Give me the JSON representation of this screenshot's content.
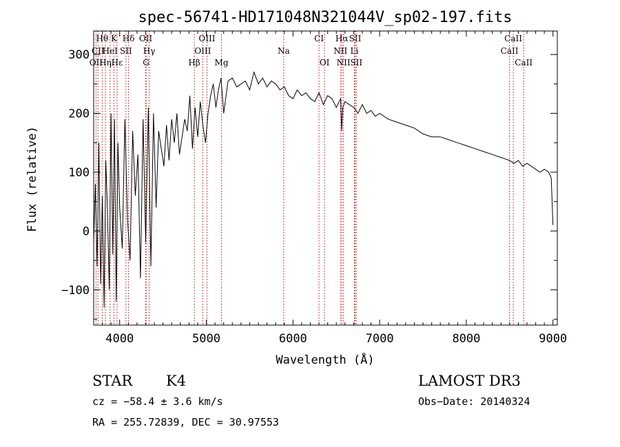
{
  "chart_data": {
    "type": "line",
    "title": "spec-56741-HD171048N321044V_sp02-197.fits",
    "xlabel": "Wavelength (Å)",
    "ylabel": "Flux (relative)",
    "xlim": [
      3700,
      9050
    ],
    "ylim": [
      -160,
      340
    ],
    "xticks": [
      4000,
      5000,
      6000,
      7000,
      8000,
      9000
    ],
    "yticks": [
      -100,
      0,
      100,
      200,
      300
    ],
    "grid": false,
    "series": [
      {
        "name": "flux",
        "x": [
          3700,
          3720,
          3740,
          3760,
          3780,
          3800,
          3820,
          3840,
          3860,
          3880,
          3900,
          3920,
          3940,
          3960,
          3980,
          4000,
          4030,
          4060,
          4090,
          4120,
          4150,
          4180,
          4210,
          4240,
          4270,
          4300,
          4330,
          4360,
          4390,
          4420,
          4450,
          4480,
          4510,
          4540,
          4570,
          4600,
          4630,
          4660,
          4690,
          4720,
          4750,
          4780,
          4810,
          4840,
          4870,
          4900,
          4930,
          4960,
          4990,
          5020,
          5050,
          5080,
          5110,
          5140,
          5170,
          5200,
          5250,
          5300,
          5350,
          5400,
          5450,
          5500,
          5550,
          5600,
          5650,
          5700,
          5750,
          5800,
          5850,
          5900,
          5950,
          6000,
          6050,
          6100,
          6150,
          6200,
          6250,
          6300,
          6350,
          6400,
          6450,
          6500,
          6550,
          6562,
          6575,
          6600,
          6650,
          6700,
          6750,
          6800,
          6850,
          6900,
          6950,
          7000,
          7100,
          7200,
          7300,
          7400,
          7500,
          7600,
          7700,
          7800,
          7900,
          8000,
          8100,
          8200,
          8300,
          8400,
          8500,
          8550,
          8600,
          8650,
          8700,
          8750,
          8800,
          8850,
          8900,
          8950,
          8980,
          9000
        ],
        "values": [
          -20,
          80,
          -60,
          150,
          -90,
          60,
          -130,
          120,
          30,
          -100,
          200,
          -40,
          190,
          -120,
          150,
          40,
          -30,
          190,
          20,
          -50,
          170,
          60,
          130,
          -80,
          190,
          -20,
          210,
          -60,
          200,
          40,
          170,
          140,
          110,
          180,
          120,
          190,
          150,
          200,
          130,
          160,
          190,
          170,
          230,
          140,
          210,
          160,
          220,
          180,
          150,
          200,
          230,
          250,
          210,
          240,
          260,
          200,
          255,
          260,
          245,
          250,
          255,
          240,
          270,
          250,
          260,
          245,
          255,
          250,
          240,
          245,
          230,
          225,
          240,
          230,
          235,
          225,
          220,
          235,
          215,
          230,
          225,
          210,
          225,
          170,
          210,
          220,
          215,
          210,
          200,
          215,
          200,
          205,
          195,
          200,
          190,
          185,
          180,
          175,
          165,
          160,
          160,
          155,
          150,
          145,
          140,
          135,
          130,
          125,
          120,
          115,
          120,
          110,
          115,
          110,
          105,
          100,
          105,
          100,
          90,
          10
        ]
      }
    ],
    "lines": [
      {
        "label": "Hθ",
        "x": 3798,
        "row": 0
      },
      {
        "label": "K",
        "x": 3934,
        "row": 0
      },
      {
        "label": "Hδ",
        "x": 4102,
        "row": 0
      },
      {
        "label": "OII",
        "x": 4300,
        "row": 0
      },
      {
        "label": "OIII",
        "x": 5007,
        "row": 0
      },
      {
        "label": "CI",
        "x": 6300,
        "row": 0
      },
      {
        "label": "Hα",
        "x": 6563,
        "row": 0
      },
      {
        "label": "SII",
        "x": 6717,
        "row": 0
      },
      {
        "label": "CaII",
        "x": 8542,
        "row": 0
      },
      {
        "label": "CII",
        "x": 3750,
        "row": 1
      },
      {
        "label": "HeI",
        "x": 3889,
        "row": 1
      },
      {
        "label": "SII",
        "x": 4072,
        "row": 1
      },
      {
        "label": "Hγ",
        "x": 4340,
        "row": 1
      },
      {
        "label": "OIII",
        "x": 4959,
        "row": 1
      },
      {
        "label": "Na",
        "x": 5893,
        "row": 1
      },
      {
        "label": "NII",
        "x": 6548,
        "row": 1
      },
      {
        "label": "Li",
        "x": 6708,
        "row": 1
      },
      {
        "label": "CaII",
        "x": 8498,
        "row": 1
      },
      {
        "label": "OII",
        "x": 3727,
        "row": 2
      },
      {
        "label": "Hη",
        "x": 3835,
        "row": 2
      },
      {
        "label": "Hε",
        "x": 3970,
        "row": 2
      },
      {
        "label": "G",
        "x": 4305,
        "row": 2
      },
      {
        "label": "Hβ",
        "x": 4861,
        "row": 2
      },
      {
        "label": "Mg",
        "x": 5175,
        "row": 2
      },
      {
        "label": "OI",
        "x": 6364,
        "row": 2
      },
      {
        "label": "NII",
        "x": 6583,
        "row": 2
      },
      {
        "label": "SII",
        "x": 6731,
        "row": 2
      },
      {
        "label": "CaII",
        "x": 8662,
        "row": 2
      }
    ]
  },
  "info": {
    "object_class": "STAR",
    "subclass": "K4",
    "cz": "cz = −58.4 ± 3.6 km/s",
    "radec": "RA = 255.72839, DEC =  30.97553",
    "survey": "LAMOST DR3",
    "obs_date": "Obs−Date: 20140324"
  },
  "colors": {
    "line_marker": "#cc0000",
    "spectrum": "#000000"
  }
}
